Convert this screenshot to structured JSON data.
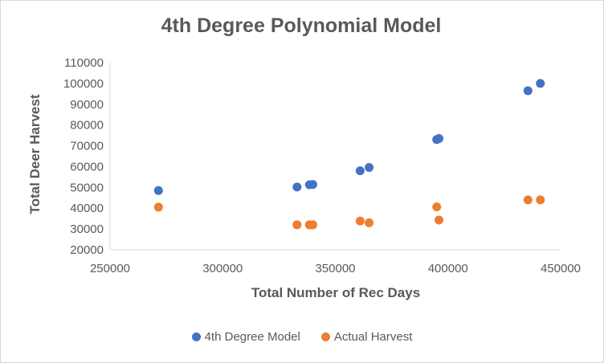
{
  "chart_data": {
    "type": "scatter",
    "title": "4th Degree Polynomial Model",
    "xlabel": "Total Number of Rec Days",
    "ylabel": "Total Deer Harvest",
    "xlim": [
      250000,
      450000
    ],
    "ylim": [
      20000,
      110000
    ],
    "x_ticks": [
      "250000",
      "300000",
      "350000",
      "400000",
      "450000"
    ],
    "y_ticks": [
      "20000",
      "30000",
      "40000",
      "50000",
      "60000",
      "70000",
      "80000",
      "90000",
      "100000",
      "110000"
    ],
    "grid": false,
    "legend_position": "bottom",
    "series": [
      {
        "name": "4th Degree Model",
        "color": "#4472C4",
        "points": [
          [
            271500,
            48500
          ],
          [
            333000,
            50200
          ],
          [
            338500,
            51300
          ],
          [
            340000,
            51400
          ],
          [
            361000,
            58000
          ],
          [
            365000,
            59600
          ],
          [
            395000,
            73000
          ],
          [
            396000,
            73500
          ],
          [
            435500,
            96500
          ],
          [
            441000,
            100000
          ]
        ]
      },
      {
        "name": "Actual Harvest",
        "color": "#ED7D31",
        "points": [
          [
            271500,
            40500
          ],
          [
            333000,
            32000
          ],
          [
            338500,
            32000
          ],
          [
            340000,
            32000
          ],
          [
            361000,
            33800
          ],
          [
            365000,
            33000
          ],
          [
            395000,
            40600
          ],
          [
            396000,
            34300
          ],
          [
            435500,
            44000
          ],
          [
            441000,
            44000
          ]
        ]
      }
    ]
  }
}
